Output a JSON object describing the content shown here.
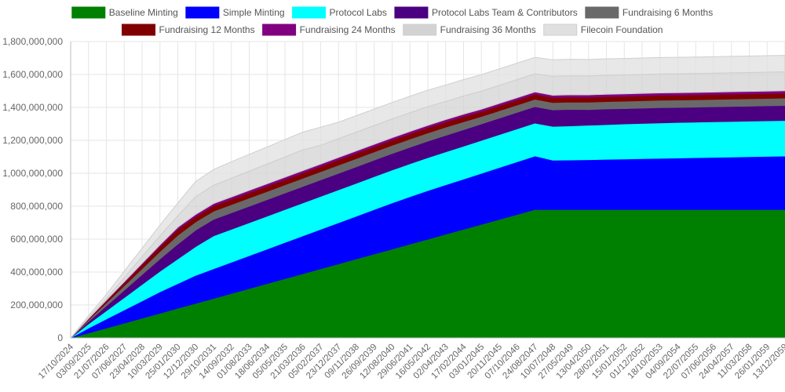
{
  "chart_data": {
    "type": "area",
    "stacked": true,
    "title": "",
    "xlabel": "",
    "ylabel": "",
    "ylim": [
      0,
      1800000000
    ],
    "yticks": [
      0,
      200000000,
      400000000,
      600000000,
      800000000,
      1000000000,
      1200000000,
      1400000000,
      1600000000,
      1800000000
    ],
    "ytick_labels": [
      "0",
      "200,000,000",
      "400,000,000",
      "600,000,000",
      "800,000,000",
      "1,000,000,000",
      "1,200,000,000",
      "1,400,000,000",
      "1,600,000,000",
      "1,800,000,000"
    ],
    "x_tick_labels": [
      "17/10/2024",
      "03/09/2025",
      "21/07/2026",
      "07/06/2027",
      "23/04/2028",
      "10/03/2029",
      "25/01/2030",
      "12/12/2030",
      "29/10/2031",
      "14/09/2032",
      "01/08/2033",
      "18/06/2034",
      "05/05/2035",
      "21/03/2036",
      "05/02/2037",
      "23/12/2037",
      "09/11/2038",
      "26/09/2039",
      "12/08/2040",
      "29/06/2041",
      "16/05/2042",
      "02/04/2043",
      "17/02/2044",
      "03/01/2045",
      "20/11/2045",
      "07/10/2046",
      "24/08/2047",
      "10/07/2048",
      "27/05/2049",
      "13/04/2050",
      "28/02/2051",
      "15/01/2052",
      "01/12/2052",
      "18/10/2053",
      "04/09/2054",
      "22/07/2055",
      "07/06/2056",
      "24/04/2057",
      "11/03/2058",
      "26/01/2059",
      "13/12/2059"
    ],
    "grid": true,
    "legend_position": "top",
    "x": [
      "17/10/2024",
      "03/09/2025",
      "21/07/2026",
      "07/06/2027",
      "23/04/2028",
      "10/03/2029",
      "25/01/2030",
      "12/12/2030",
      "29/10/2031",
      "14/09/2032",
      "01/08/2033",
      "18/06/2034",
      "05/05/2035",
      "21/03/2036",
      "05/02/2037",
      "23/12/2037",
      "09/11/2038",
      "26/09/2039",
      "12/08/2040",
      "29/06/2041",
      "16/05/2042",
      "02/04/2043",
      "17/02/2044",
      "03/01/2045",
      "20/11/2045",
      "07/10/2046",
      "24/08/2047",
      "10/07/2048",
      "27/05/2049",
      "13/04/2050",
      "28/02/2051",
      "15/01/2052",
      "01/12/2052",
      "18/10/2053",
      "04/09/2054",
      "22/07/2055",
      "07/06/2056",
      "24/04/2057",
      "11/03/2058",
      "26/01/2059",
      "13/12/2059"
    ],
    "series": [
      {
        "name": "Baseline Minting",
        "color": "#008000",
        "values": [
          0,
          30000000,
          60000000,
          90000000,
          120000000,
          150000000,
          180000000,
          210000000,
          240000000,
          270000000,
          300000000,
          330000000,
          360000000,
          390000000,
          420000000,
          450000000,
          480000000,
          510000000,
          540000000,
          570000000,
          600000000,
          630000000,
          660000000,
          690000000,
          720000000,
          750000000,
          780000000,
          780000000,
          780000000,
          780000000,
          780000000,
          780000000,
          780000000,
          780000000,
          780000000,
          780000000,
          780000000,
          780000000,
          780000000,
          780000000,
          780000000
        ]
      },
      {
        "name": "Simple Minting",
        "color": "#0000ff",
        "values": [
          0,
          30000000,
          55000000,
          80000000,
          105000000,
          130000000,
          150000000,
          170000000,
          180000000,
          190000000,
          200000000,
          210000000,
          220000000,
          230000000,
          240000000,
          250000000,
          260000000,
          270000000,
          280000000,
          288000000,
          295000000,
          300000000,
          305000000,
          310000000,
          315000000,
          320000000,
          325000000,
          300000000,
          301000000,
          303000000,
          305000000,
          307000000,
          309000000,
          311000000,
          313000000,
          315000000,
          317000000,
          319000000,
          321000000,
          323000000,
          325000000
        ]
      },
      {
        "name": "Protocol Labs",
        "color": "#00ffff",
        "values": [
          0,
          25000000,
          50000000,
          75000000,
          100000000,
          125000000,
          150000000,
          175000000,
          200000000,
          200000000,
          200000000,
          200000000,
          200000000,
          200000000,
          200000000,
          200000000,
          200000000,
          200000000,
          200000000,
          200000000,
          200000000,
          200000000,
          200000000,
          200000000,
          200000000,
          200000000,
          200000000,
          205000000,
          207000000,
          209000000,
          211000000,
          213000000,
          214000000,
          215000000,
          216000000,
          216000000,
          216000000,
          216000000,
          216000000,
          216000000,
          216000000
        ]
      },
      {
        "name": "Protocol Labs Team & Contributors",
        "color": "#4b0082",
        "values": [
          0,
          15000000,
          30000000,
          45000000,
          60000000,
          75000000,
          90000000,
          100000000,
          100000000,
          100000000,
          100000000,
          100000000,
          100000000,
          100000000,
          100000000,
          100000000,
          100000000,
          100000000,
          100000000,
          100000000,
          100000000,
          100000000,
          100000000,
          100000000,
          100000000,
          100000000,
          100000000,
          100000000,
          100000000,
          95000000,
          95000000,
          93000000,
          93000000,
          93000000,
          91000000,
          91000000,
          91000000,
          91000000,
          91000000,
          91000000,
          91000000
        ]
      },
      {
        "name": "Fundraising 6 Months",
        "color": "#696969",
        "values": [
          0,
          9000000,
          18000000,
          27000000,
          36000000,
          45000000,
          54000000,
          50000000,
          50000000,
          50000000,
          50000000,
          50000000,
          50000000,
          50000000,
          50000000,
          50000000,
          50000000,
          50000000,
          50000000,
          50000000,
          50000000,
          50000000,
          48000000,
          45000000,
          45000000,
          45000000,
          45000000,
          45000000,
          45000000,
          45000000,
          45000000,
          45000000,
          45000000,
          45000000,
          45000000,
          45000000,
          45000000,
          45000000,
          45000000,
          45000000,
          45000000
        ]
      },
      {
        "name": "Fundraising 12 Months",
        "color": "#800000",
        "values": [
          0,
          6000000,
          12000000,
          18000000,
          24000000,
          30000000,
          36000000,
          32000000,
          32000000,
          32000000,
          32000000,
          32000000,
          32000000,
          32000000,
          32000000,
          32000000,
          32000000,
          32000000,
          32000000,
          32000000,
          32000000,
          32000000,
          32000000,
          30000000,
          30000000,
          30000000,
          30000000,
          30000000,
          30000000,
          30000000,
          30000000,
          30000000,
          30000000,
          30000000,
          30000000,
          30000000,
          30000000,
          30000000,
          30000000,
          30000000,
          30000000
        ]
      },
      {
        "name": "Fundraising 24 Months",
        "color": "#800080",
        "values": [
          0,
          2000000,
          4000000,
          6000000,
          8000000,
          10000000,
          12000000,
          13000000,
          14000000,
          14000000,
          14000000,
          14000000,
          14000000,
          14000000,
          14000000,
          14000000,
          14000000,
          14000000,
          14000000,
          14000000,
          14000000,
          14000000,
          14000000,
          14000000,
          14000000,
          14000000,
          14000000,
          14000000,
          14000000,
          14000000,
          14000000,
          14000000,
          14000000,
          14000000,
          14000000,
          14000000,
          14000000,
          14000000,
          14000000,
          14000000,
          14000000
        ]
      },
      {
        "name": "Fundraising 36 Months",
        "color": "#d3d3d3",
        "values": [
          0,
          5000000,
          10000000,
          25000000,
          40000000,
          55000000,
          70000000,
          108000000,
          111000000,
          114000000,
          117000000,
          120000000,
          123000000,
          126000000,
          114000000,
          114000000,
          114000000,
          114000000,
          114000000,
          114000000,
          114000000,
          110000000,
          110000000,
          110000000,
          110000000,
          110000000,
          110000000,
          115000000,
          115000000,
          115000000,
          115000000,
          115000000,
          115000000,
          115000000,
          115000000,
          115000000,
          115000000,
          115000000,
          115000000,
          115000000,
          115000000
        ]
      },
      {
        "name": "Filecoin Foundation",
        "color": "#e0e0e0",
        "values": [
          0,
          13000000,
          26000000,
          39000000,
          52000000,
          65000000,
          78000000,
          92000000,
          96000000,
          100000000,
          102000000,
          104000000,
          106000000,
          108000000,
          110000000,
          100000000,
          100000000,
          100000000,
          100000000,
          100000000,
          100000000,
          100000000,
          100000000,
          100000000,
          100000000,
          100000000,
          100000000,
          100000000,
          100000000,
          100000000,
          100000000,
          100000000,
          100000000,
          100000000,
          100000000,
          100000000,
          100000000,
          100000000,
          100000000,
          100000000,
          100000000
        ]
      }
    ]
  }
}
